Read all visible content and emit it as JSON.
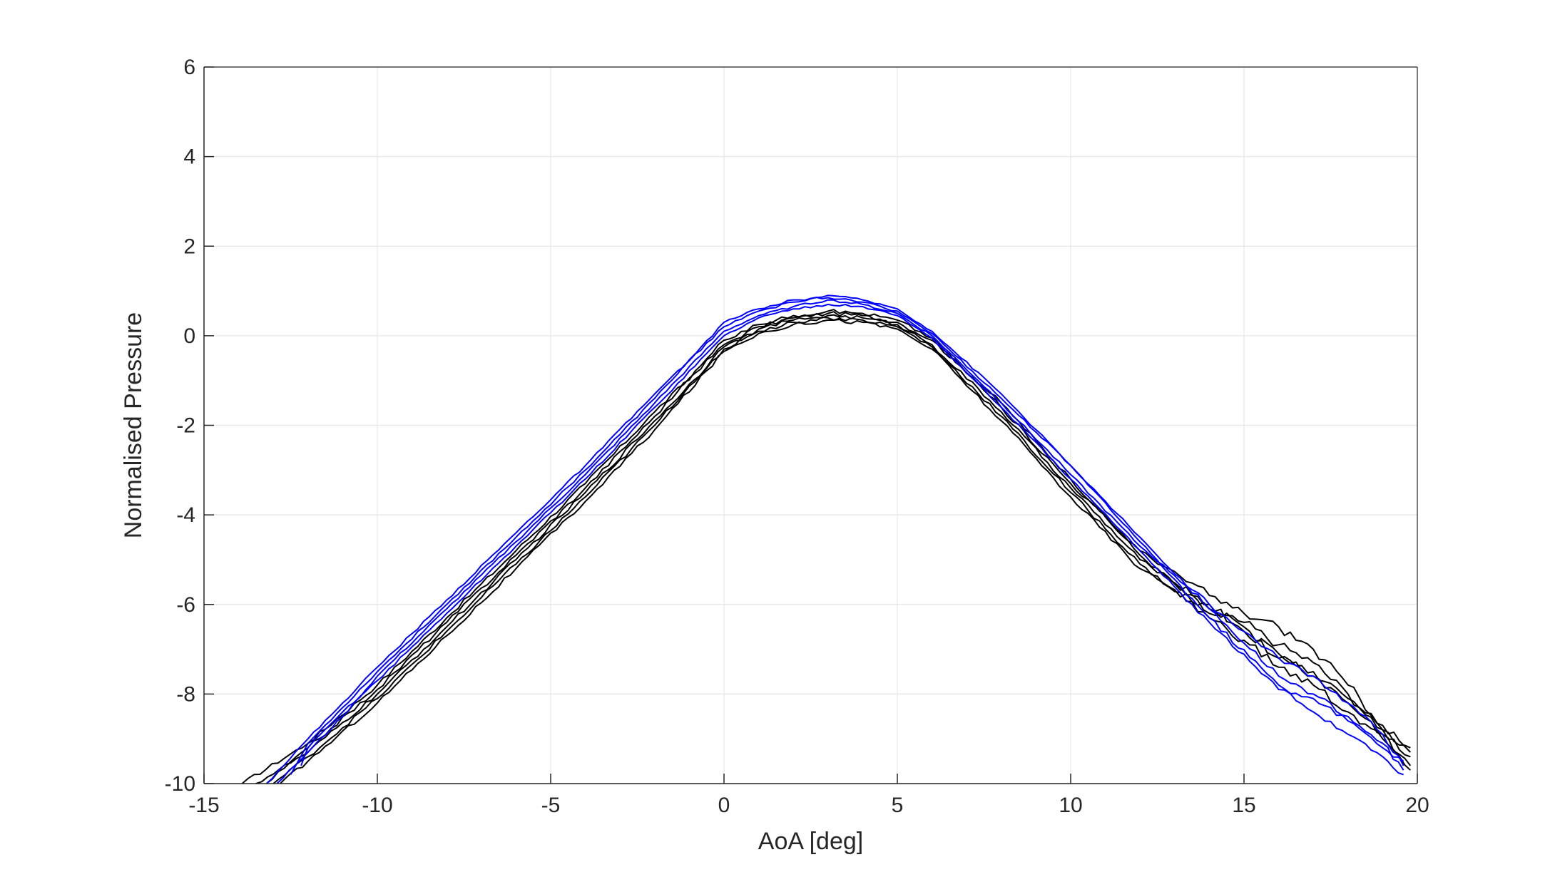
{
  "chart_data": {
    "type": "line",
    "title": "",
    "xlabel": "AoA [deg]",
    "ylabel": "Normalised Pressure",
    "xlim": [
      -15,
      20
    ],
    "ylim": [
      -10,
      6
    ],
    "xticks": [
      -15,
      -10,
      -5,
      0,
      5,
      10,
      15,
      20
    ],
    "yticks": [
      -10,
      -8,
      -6,
      -4,
      -2,
      0,
      2,
      4,
      6
    ],
    "grid": true,
    "legend": "none",
    "colors": {
      "black": "#000000",
      "blue": "#0000ff",
      "grid": "#e6e6e6",
      "axis": "#262626"
    },
    "series": [
      {
        "color": "#000000",
        "x": [
          -13.9,
          -12,
          -10,
          -8,
          -6,
          -4,
          -2,
          0,
          1,
          2,
          3,
          4,
          5,
          6,
          8,
          10,
          12,
          14,
          15,
          16,
          17,
          18,
          19,
          19.8
        ],
        "y": [
          -10.0,
          -9.1,
          -7.8,
          -6.3,
          -4.8,
          -3.3,
          -1.7,
          -0.2,
          0.2,
          0.4,
          0.5,
          0.45,
          0.3,
          -0.1,
          -1.5,
          -3.2,
          -4.9,
          -6.2,
          -6.4,
          -6.9,
          -7.3,
          -8.0,
          -8.8,
          -9.4
        ]
      },
      {
        "color": "#000000",
        "x": [
          -13.5,
          -12,
          -10,
          -8,
          -6,
          -4,
          -2,
          0,
          1,
          2,
          3,
          4,
          5,
          6,
          8,
          10,
          12,
          14,
          15,
          16,
          17,
          18,
          19,
          19.8
        ],
        "y": [
          -10.0,
          -9.3,
          -8.0,
          -6.5,
          -5.0,
          -3.5,
          -1.9,
          -0.3,
          0.15,
          0.35,
          0.45,
          0.4,
          0.25,
          -0.2,
          -1.7,
          -3.4,
          -5.0,
          -6.0,
          -6.6,
          -7.1,
          -7.6,
          -8.2,
          -8.9,
          -9.6
        ]
      },
      {
        "color": "#000000",
        "x": [
          -13.2,
          -12,
          -10,
          -8,
          -6,
          -4,
          -2,
          0,
          1,
          2,
          3,
          4,
          5,
          6,
          8,
          10,
          12,
          14,
          15,
          16,
          17,
          18,
          19,
          19.8
        ],
        "y": [
          -10.0,
          -9.2,
          -7.9,
          -6.4,
          -4.9,
          -3.4,
          -1.8,
          -0.1,
          0.25,
          0.45,
          0.55,
          0.5,
          0.35,
          -0.05,
          -1.6,
          -3.3,
          -4.8,
          -5.8,
          -6.2,
          -6.5,
          -7.0,
          -7.8,
          -8.7,
          -9.3
        ]
      },
      {
        "color": "#000000",
        "x": [
          -13.0,
          -12,
          -10,
          -8,
          -6,
          -4,
          -2,
          0,
          1,
          2,
          3,
          4,
          5,
          6,
          8,
          10,
          12,
          14,
          15,
          16,
          17,
          18,
          19,
          19.8
        ],
        "y": [
          -10.0,
          -9.4,
          -8.1,
          -6.6,
          -5.1,
          -3.6,
          -2.0,
          -0.25,
          0.1,
          0.3,
          0.4,
          0.35,
          0.2,
          -0.25,
          -1.8,
          -3.5,
          -5.1,
          -6.3,
          -6.8,
          -7.4,
          -7.8,
          -8.4,
          -9.0,
          -9.7
        ]
      },
      {
        "color": "#000000",
        "x": [
          -12.8,
          -12,
          -10,
          -8,
          -6,
          -4,
          -2,
          0,
          1,
          2,
          3,
          4,
          5,
          6,
          8,
          10,
          12,
          14,
          15,
          16,
          17,
          18,
          19,
          19.8
        ],
        "y": [
          -10.0,
          -9.5,
          -8.2,
          -6.7,
          -5.2,
          -3.7,
          -2.1,
          -0.35,
          0.05,
          0.25,
          0.35,
          0.3,
          0.15,
          -0.3,
          -1.9,
          -3.6,
          -5.2,
          -6.1,
          -6.5,
          -7.2,
          -7.5,
          -8.1,
          -8.8,
          -9.2
        ]
      },
      {
        "color": "#0000ff",
        "x": [
          -13.2,
          -12,
          -11,
          -10,
          -8,
          -6,
          -4,
          -2,
          0,
          1,
          2,
          3,
          4,
          5,
          6,
          8,
          10,
          12,
          14,
          16,
          17,
          18,
          19,
          19.6
        ],
        "y": [
          -10.0,
          -9.0,
          -8.2,
          -7.4,
          -5.9,
          -4.4,
          -2.9,
          -1.3,
          0.2,
          0.55,
          0.75,
          0.9,
          0.8,
          0.6,
          0.1,
          -1.3,
          -2.9,
          -4.6,
          -6.3,
          -7.8,
          -8.4,
          -8.9,
          -9.4,
          -9.8
        ]
      },
      {
        "color": "#0000ff",
        "x": [
          -12.9,
          -12,
          -11,
          -10,
          -8,
          -6,
          -4,
          -2,
          0,
          1,
          2,
          3,
          4,
          5,
          6,
          8,
          10,
          12,
          14,
          16,
          17,
          18,
          19,
          19.6
        ],
        "y": [
          -10.0,
          -9.3,
          -8.5,
          -7.6,
          -6.1,
          -4.6,
          -3.1,
          -1.5,
          0.1,
          0.45,
          0.65,
          0.8,
          0.7,
          0.5,
          0.0,
          -1.5,
          -3.1,
          -4.7,
          -6.0,
          -7.2,
          -7.6,
          -8.2,
          -8.9,
          -9.6
        ]
      },
      {
        "color": "#0000ff",
        "x": [
          -12.5,
          -12,
          -11,
          -10,
          -8,
          -6,
          -4,
          -2,
          0,
          1,
          2,
          3,
          4,
          5,
          6,
          8,
          10,
          12,
          14,
          16,
          17,
          18,
          19,
          19.6
        ],
        "y": [
          -9.8,
          -9.1,
          -8.3,
          -7.5,
          -6.0,
          -4.5,
          -3.0,
          -1.4,
          0.3,
          0.6,
          0.8,
          0.85,
          0.75,
          0.55,
          0.05,
          -1.4,
          -2.9,
          -4.5,
          -6.1,
          -7.6,
          -8.0,
          -8.5,
          -9.1,
          -9.7
        ]
      },
      {
        "color": "#0000ff",
        "x": [
          -12.2,
          -12,
          -11,
          -10,
          -8,
          -6,
          -4,
          -2,
          0,
          1,
          2,
          3,
          4,
          5,
          6,
          8,
          10,
          12,
          14,
          16,
          17,
          18,
          19,
          19.6
        ],
        "y": [
          -9.6,
          -9.2,
          -8.4,
          -7.7,
          -6.2,
          -4.7,
          -3.2,
          -1.6,
          0.0,
          0.4,
          0.6,
          0.7,
          0.65,
          0.45,
          -0.05,
          -1.6,
          -3.2,
          -4.8,
          -6.4,
          -7.9,
          -8.1,
          -8.6,
          -9.2,
          -9.5
        ]
      }
    ]
  }
}
